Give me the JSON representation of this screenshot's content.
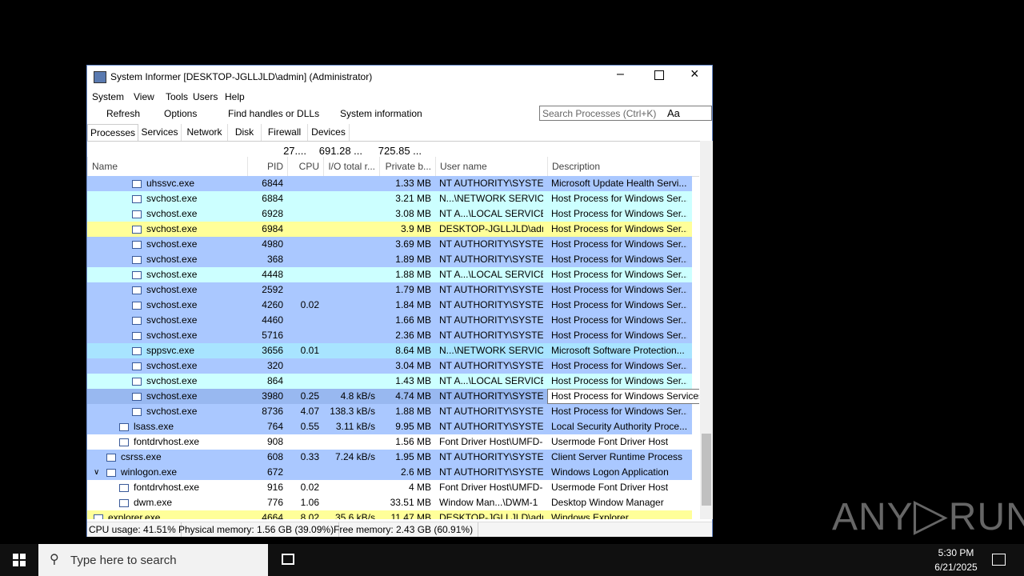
{
  "window": {
    "title": "System Informer [DESKTOP-JGLLJLD\\admin] (Administrator)"
  },
  "menu": [
    "System",
    "View",
    "Tools",
    "Users",
    "Help"
  ],
  "toolbar": {
    "buttons": [
      "Refresh",
      "Options",
      "Find handles or DLLs",
      "System information"
    ],
    "search_placeholder": "Search Processes (Ctrl+K)",
    "case_toggle": "Aa"
  },
  "tabs": [
    "Processes",
    "Services",
    "Network",
    "Disk",
    "Firewall",
    "Devices"
  ],
  "table": {
    "totals": {
      "cpu": "27....",
      "io": "691.28 ...",
      "private": "725.85 ..."
    },
    "columns": [
      "Name",
      "PID",
      "CPU",
      "I/O total r...",
      "Private b...",
      "User name",
      "Description"
    ],
    "rows": [
      {
        "name": "uhssvc.exe",
        "pid": "6844",
        "cpu": null,
        "io": null,
        "private": "1.33 MB",
        "user": "NT AUTHORITY\\SYSTEM",
        "desc": "Microsoft Update Health Servi...",
        "color": "#aac8ff"
      },
      {
        "name": "svchost.exe",
        "pid": "6884",
        "cpu": null,
        "io": null,
        "private": "3.21 MB",
        "user": "N...\\NETWORK SERVICE",
        "desc": "Host Process for Windows Ser...",
        "color": "#ccffff"
      },
      {
        "name": "svchost.exe",
        "pid": "6928",
        "cpu": null,
        "io": null,
        "private": "3.08 MB",
        "user": "NT A...\\LOCAL SERVICE",
        "desc": "Host Process for Windows Ser...",
        "color": "#ccffff"
      },
      {
        "name": "svchost.exe",
        "pid": "6984",
        "cpu": null,
        "io": null,
        "private": "3.9 MB",
        "user": "DESKTOP-JGLLJLD\\admi",
        "desc": "Host Process for Windows Ser...",
        "color": "#ffff99"
      },
      {
        "name": "svchost.exe",
        "pid": "4980",
        "cpu": null,
        "io": null,
        "private": "3.69 MB",
        "user": "NT AUTHORITY\\SYSTEM",
        "desc": "Host Process for Windows Ser...",
        "color": "#aac8ff"
      },
      {
        "name": "svchost.exe",
        "pid": "368",
        "cpu": null,
        "io": null,
        "private": "1.89 MB",
        "user": "NT AUTHORITY\\SYSTEM",
        "desc": "Host Process for Windows Ser...",
        "color": "#aac8ff"
      },
      {
        "name": "svchost.exe",
        "pid": "4448",
        "cpu": null,
        "io": null,
        "private": "1.88 MB",
        "user": "NT A...\\LOCAL SERVICE",
        "desc": "Host Process for Windows Ser...",
        "color": "#ccffff"
      },
      {
        "name": "svchost.exe",
        "pid": "2592",
        "cpu": null,
        "io": null,
        "private": "1.79 MB",
        "user": "NT AUTHORITY\\SYSTEM",
        "desc": "Host Process for Windows Ser...",
        "color": "#aac8ff"
      },
      {
        "name": "svchost.exe",
        "pid": "4260",
        "cpu": "0.02",
        "io": null,
        "private": "1.84 MB",
        "user": "NT AUTHORITY\\SYSTEM",
        "desc": "Host Process for Windows Ser...",
        "color": "#aac8ff"
      },
      {
        "name": "svchost.exe",
        "pid": "4460",
        "cpu": null,
        "io": null,
        "private": "1.66 MB",
        "user": "NT AUTHORITY\\SYSTEM",
        "desc": "Host Process for Windows Ser...",
        "color": "#aac8ff"
      },
      {
        "name": "svchost.exe",
        "pid": "5716",
        "cpu": null,
        "io": null,
        "private": "2.36 MB",
        "user": "NT AUTHORITY\\SYSTEM",
        "desc": "Host Process for Windows Ser...",
        "color": "#aac8ff"
      },
      {
        "name": "sppsvc.exe",
        "pid": "3656",
        "cpu": "0.01",
        "io": null,
        "private": "8.64 MB",
        "user": "N...\\NETWORK SERVICE",
        "desc": "Microsoft Software Protection...",
        "color": "#a8e4ff"
      },
      {
        "name": "svchost.exe",
        "pid": "320",
        "cpu": null,
        "io": null,
        "private": "3.04 MB",
        "user": "NT AUTHORITY\\SYSTEM",
        "desc": "Host Process for Windows Ser...",
        "color": "#aac8ff"
      },
      {
        "name": "svchost.exe",
        "pid": "864",
        "cpu": null,
        "io": null,
        "private": "1.43 MB",
        "user": "NT A...\\LOCAL SERVICE",
        "desc": "Host Process for Windows Ser...",
        "color": "#ccffff"
      },
      {
        "name": "svchost.exe",
        "pid": "3980",
        "cpu": "0.25",
        "io": "4.8 kB/s",
        "private": "4.74 MB",
        "user": "NT AUTHORITY\\SYSTEM",
        "desc": "Host Process for Windows Services",
        "color": "#98b8f0"
      },
      {
        "name": "svchost.exe",
        "pid": "8736",
        "cpu": "4.07",
        "io": "138.3 kB/s",
        "private": "1.88 MB",
        "user": "NT AUTHORITY\\SYSTEM",
        "desc": "Host Process for Windows Ser...",
        "color": "#aac8ff"
      },
      {
        "name": "lsass.exe",
        "pid": "764",
        "cpu": "0.55",
        "io": "3.11 kB/s",
        "private": "9.95 MB",
        "user": "NT AUTHORITY\\SYSTEM",
        "desc": "Local Security Authority Proce...",
        "color": "#aac8ff"
      },
      {
        "name": "fontdrvhost.exe",
        "pid": "908",
        "cpu": null,
        "io": null,
        "private": "1.56 MB",
        "user": "Font Driver Host\\UMFD-",
        "desc": "Usermode Font Driver Host",
        "color": "#ffffff"
      },
      {
        "name": "csrss.exe",
        "pid": "608",
        "cpu": "0.33",
        "io": "7.24 kB/s",
        "private": "1.95 MB",
        "user": "NT AUTHORITY\\SYSTEM",
        "desc": "Client Server Runtime Process",
        "color": "#aac8ff"
      },
      {
        "name": "winlogon.exe",
        "pid": "672",
        "cpu": null,
        "io": null,
        "private": "2.6 MB",
        "user": "NT AUTHORITY\\SYSTEM",
        "desc": "Windows Logon Application",
        "color": "#aac8ff"
      },
      {
        "name": "fontdrvhost.exe",
        "pid": "916",
        "cpu": "0.02",
        "io": null,
        "private": "4 MB",
        "user": "Font Driver Host\\UMFD-",
        "desc": "Usermode Font Driver Host",
        "color": "#ffffff"
      },
      {
        "name": "dwm.exe",
        "pid": "776",
        "cpu": "1.06",
        "io": null,
        "private": "33.51 MB",
        "user": "Window Man...\\DWM-1",
        "desc": "Desktop Window Manager",
        "color": "#ffffff"
      },
      {
        "name": "explorer.exe",
        "pid": "4664",
        "cpu": "8.02",
        "io": "35.6 kB/s",
        "private": "11.47 MB",
        "user": "DESKTOP-JGLLJLD\\admi",
        "desc": "Windows Explorer",
        "color": "#ffff99"
      }
    ]
  },
  "status": [
    "CPU usage: 41.51%",
    "Physical memory: 1.56 GB (39.09%)",
    "Free memory: 2.43 GB (60.91%)"
  ],
  "taskbar": {
    "search": "Type here to search",
    "time": "5:30 PM",
    "date": "6/21/2025"
  },
  "watermark": {
    "left": "ANY",
    "right": "RUN"
  }
}
